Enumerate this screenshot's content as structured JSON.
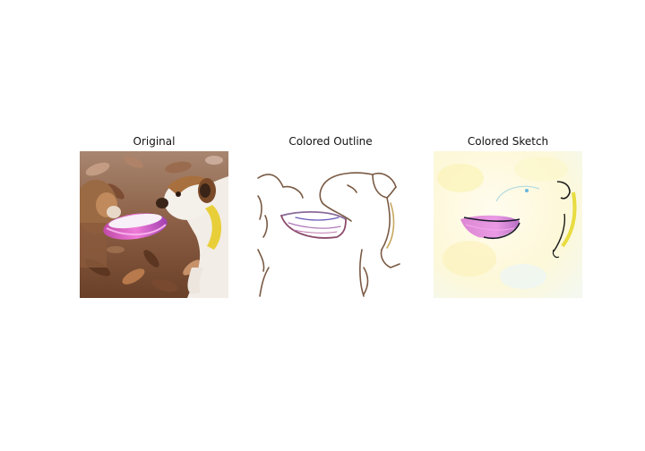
{
  "figure": {
    "panels": [
      {
        "id": "original",
        "title": "Original"
      },
      {
        "id": "outline",
        "title": "Colored Outline"
      },
      {
        "id": "sketch",
        "title": "Colored Sketch"
      }
    ]
  },
  "colors": {
    "leaf_dark": "#5a3a26",
    "leaf_mid": "#8a5a3c",
    "leaf_light": "#c89a78",
    "dog_brown": "#9a6a44",
    "dog_white": "#f4f0ea",
    "collar_yellow": "#e8cf3a",
    "frisbee_pink": "#d45ab8",
    "frisbee_purple": "#7a4fb0",
    "outline_brown": "#7a5a44",
    "sketch_bg": "#fdfbe0"
  }
}
